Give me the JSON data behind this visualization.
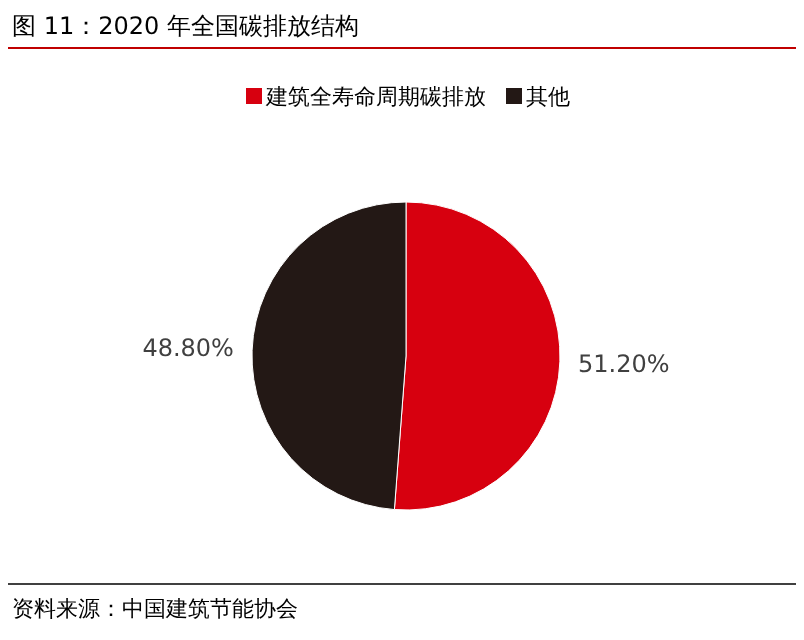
{
  "chart_data": {
    "type": "pie",
    "title": "图 11：2020 年全国碳排放结构",
    "categories": [
      "建筑全寿命周期碳排放",
      "其他"
    ],
    "values": [
      51.2,
      48.8
    ],
    "value_labels": [
      "51.20%",
      "48.80%"
    ],
    "colors": [
      "#d7000f",
      "#231815"
    ],
    "legend": "top",
    "annotations": [
      "资料来源：中国建筑节能协会"
    ]
  }
}
